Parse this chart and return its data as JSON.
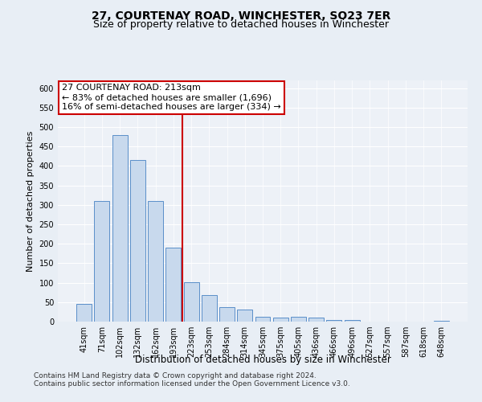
{
  "title": "27, COURTENAY ROAD, WINCHESTER, SO23 7ER",
  "subtitle": "Size of property relative to detached houses in Winchester",
  "xlabel": "Distribution of detached houses by size in Winchester",
  "ylabel": "Number of detached properties",
  "categories": [
    "41sqm",
    "71sqm",
    "102sqm",
    "132sqm",
    "162sqm",
    "193sqm",
    "223sqm",
    "253sqm",
    "284sqm",
    "314sqm",
    "345sqm",
    "375sqm",
    "405sqm",
    "436sqm",
    "466sqm",
    "496sqm",
    "527sqm",
    "557sqm",
    "587sqm",
    "618sqm",
    "648sqm"
  ],
  "values": [
    45,
    311,
    480,
    415,
    311,
    190,
    102,
    68,
    37,
    30,
    13,
    10,
    13,
    10,
    5,
    4,
    1,
    0,
    0,
    1,
    3
  ],
  "bar_color": "#c8d9ed",
  "bar_edge_color": "#5b8fc9",
  "vline_x": 5.5,
  "vline_color": "#cc0000",
  "annotation_line1": "27 COURTENAY ROAD: 213sqm",
  "annotation_line2": "← 83% of detached houses are smaller (1,696)",
  "annotation_line3": "16% of semi-detached houses are larger (334) →",
  "annotation_box_color": "#ffffff",
  "annotation_box_edge_color": "#cc0000",
  "ylim": [
    0,
    620
  ],
  "yticks": [
    0,
    50,
    100,
    150,
    200,
    250,
    300,
    350,
    400,
    450,
    500,
    550,
    600
  ],
  "footer1": "Contains HM Land Registry data © Crown copyright and database right 2024.",
  "footer2": "Contains public sector information licensed under the Open Government Licence v3.0.",
  "background_color": "#e8eef5",
  "plot_bg_color": "#edf1f7",
  "title_fontsize": 10,
  "subtitle_fontsize": 9,
  "xlabel_fontsize": 8.5,
  "ylabel_fontsize": 8,
  "tick_fontsize": 7,
  "annotation_fontsize": 8,
  "footer_fontsize": 6.5
}
